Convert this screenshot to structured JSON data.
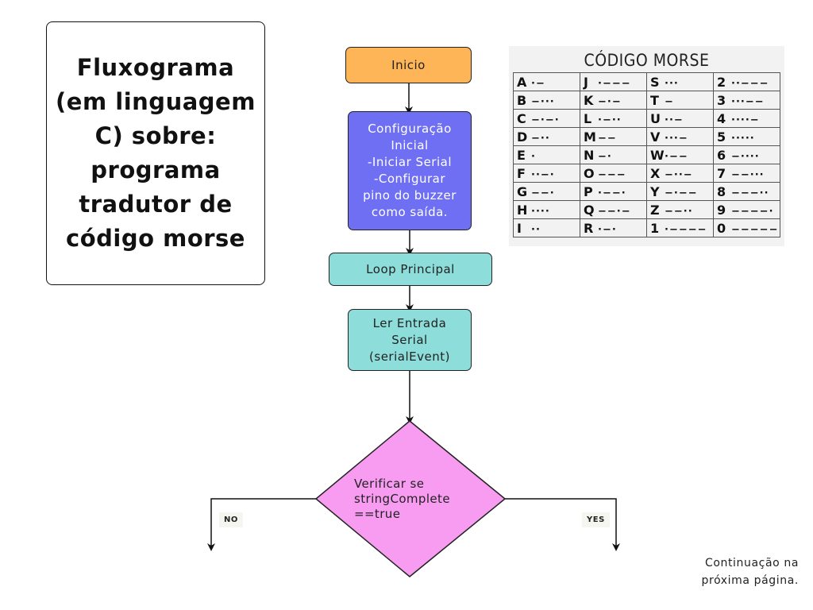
{
  "title": "Fluxograma (em linguagem C) sobre: programa tradutor de código morse",
  "nodes": {
    "start": "Inicio",
    "config": "Configuração\nInicial\n-Iniciar Serial\n-Configurar\npino do buzzer\ncomo saída.",
    "loop": "Loop Principal",
    "read": "Ler Entrada\nSerial\n(serialEvent)",
    "decision": "Verificar se\nstringComplete\n ==true"
  },
  "branches": {
    "no": "NO",
    "yes": "YES"
  },
  "footer_note": "Continuação na\npróxima página.",
  "morse_chart": {
    "title": "CÓDIGO MORSE",
    "rows": [
      [
        [
          "A",
          "·−"
        ],
        [
          "J",
          "·−−−"
        ],
        [
          "S",
          "···"
        ],
        [
          "2",
          "··−−−"
        ]
      ],
      [
        [
          "B",
          "−···"
        ],
        [
          "K",
          "−·−"
        ],
        [
          "T",
          "−"
        ],
        [
          "3",
          "···−−"
        ]
      ],
      [
        [
          "C",
          "−·−·"
        ],
        [
          "L",
          "·−··"
        ],
        [
          "U",
          "··−"
        ],
        [
          "4",
          "····−"
        ]
      ],
      [
        [
          "D",
          "−··"
        ],
        [
          "M",
          "−−"
        ],
        [
          "V",
          "···−"
        ],
        [
          "5",
          "·····"
        ]
      ],
      [
        [
          "E",
          "·"
        ],
        [
          "N",
          "−·"
        ],
        [
          "W",
          "·−−"
        ],
        [
          "6",
          "−····"
        ]
      ],
      [
        [
          "F",
          "··−·"
        ],
        [
          "O",
          "−−−"
        ],
        [
          "X",
          "−··−"
        ],
        [
          "7",
          "−−···"
        ]
      ],
      [
        [
          "G",
          "−−·"
        ],
        [
          "P",
          "·−−·"
        ],
        [
          "Y",
          "−·−−"
        ],
        [
          "8",
          "−−−··"
        ]
      ],
      [
        [
          "H",
          "····"
        ],
        [
          "Q",
          "−−·−"
        ],
        [
          "Z",
          "−−··"
        ],
        [
          "9",
          "−−−−·"
        ]
      ],
      [
        [
          "I",
          "··"
        ],
        [
          "R",
          "·−·"
        ],
        [
          "1",
          "·−−−−"
        ],
        [
          "0",
          "−−−−−"
        ]
      ]
    ]
  },
  "colors": {
    "start": "#fdb557",
    "config": "#6f6ff4",
    "process": "#8dddda",
    "decision": "#f89cf2"
  }
}
